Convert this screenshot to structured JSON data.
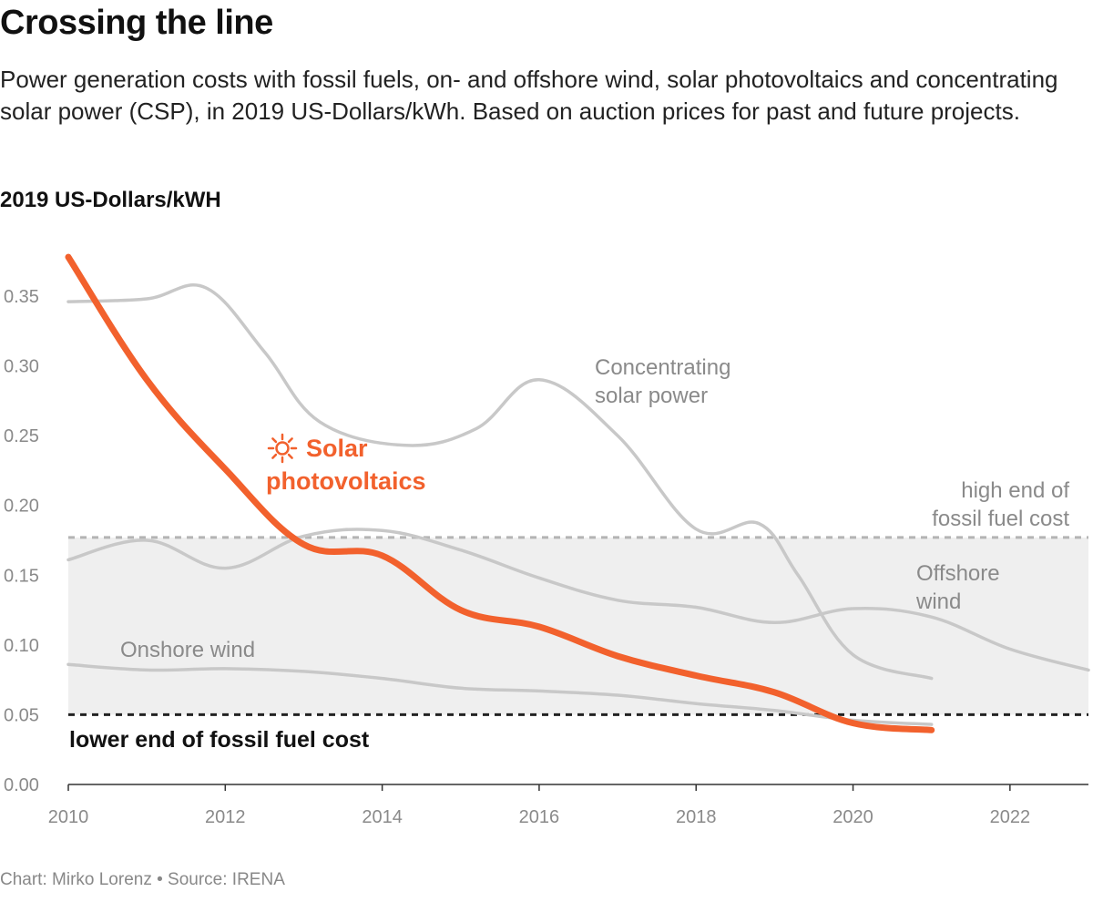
{
  "title": "Crossing the line",
  "subtitle": "Power generation costs with fossil fuels, on- and offshore wind, solar photovoltaics and concentrating solar power (CSP), in 2019 US-Dollars/kWh. Based on auction prices for past and future projects.",
  "y_axis_title": "2019 US-Dollars/kWH",
  "footer": "Chart: Mirko Lorenz • Source: IRENA",
  "colors": {
    "solar": "#f2612d",
    "gray_line": "#c8c8c8",
    "band": "#efefef",
    "text_gray": "#8a8a8a"
  },
  "chart_data": {
    "type": "line",
    "xlim": [
      2010,
      2023
    ],
    "ylim": [
      0,
      0.38
    ],
    "x_ticks": [
      "2010",
      "2012",
      "2014",
      "2016",
      "2018",
      "2020",
      "2022"
    ],
    "y_ticks": [
      "0.00",
      "0.05",
      "0.10",
      "0.15",
      "0.20",
      "0.25",
      "0.30",
      "0.35"
    ],
    "fossil_band": {
      "low": 0.05,
      "high": 0.177
    },
    "series": [
      {
        "key": "csp",
        "color": "gray",
        "x": [
          2010,
          2011,
          2011.75,
          2012.5,
          2013.2,
          2014.3,
          2015.2,
          2016,
          2017,
          2018,
          2018.8,
          2019.3,
          2020,
          2021
        ],
        "y": [
          0.346,
          0.348,
          0.356,
          0.31,
          0.26,
          0.243,
          0.255,
          0.29,
          0.25,
          0.183,
          0.187,
          0.15,
          0.093,
          0.076
        ]
      },
      {
        "key": "offshore",
        "color": "gray",
        "x": [
          2010,
          2011,
          2012,
          2013,
          2014,
          2015,
          2016,
          2017,
          2018,
          2019,
          2020,
          2021,
          2022,
          2023
        ],
        "y": [
          0.161,
          0.175,
          0.155,
          0.178,
          0.182,
          0.168,
          0.148,
          0.132,
          0.127,
          0.116,
          0.126,
          0.12,
          0.097,
          0.082
        ]
      },
      {
        "key": "onshore",
        "color": "gray",
        "x": [
          2010,
          2011,
          2012,
          2013,
          2014,
          2015,
          2016,
          2017,
          2018,
          2019,
          2020,
          2021
        ],
        "y": [
          0.086,
          0.082,
          0.083,
          0.081,
          0.076,
          0.069,
          0.067,
          0.064,
          0.058,
          0.053,
          0.046,
          0.043
        ]
      },
      {
        "key": "solar_pv",
        "color": "orange",
        "x": [
          2010,
          2011,
          2012,
          2013,
          2014,
          2015,
          2016,
          2017,
          2018,
          2019,
          2020,
          2021
        ],
        "y": [
          0.378,
          0.29,
          0.226,
          0.172,
          0.164,
          0.125,
          0.113,
          0.092,
          0.078,
          0.066,
          0.044,
          0.039
        ]
      }
    ],
    "annotations": {
      "solar_line1": "Solar",
      "solar_line2": "photovoltaics",
      "csp_line1": "Concentrating",
      "csp_line2": "solar power",
      "offshore_line1": "Offshore",
      "offshore_line2": "wind",
      "onshore": "Onshore wind",
      "high_line1": "high end of",
      "high_line2": "fossil fuel cost",
      "low": "lower end of fossil fuel cost"
    }
  }
}
